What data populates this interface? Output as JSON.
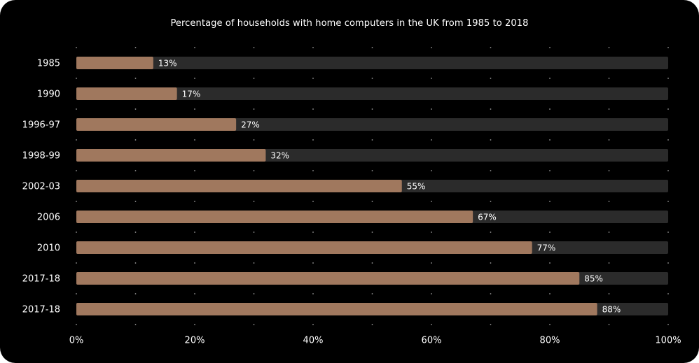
{
  "chart_data": {
    "type": "bar",
    "orientation": "horizontal",
    "title": "Percentage of households with home computers in the UK from 1985 to 2018",
    "categories": [
      "1985",
      "1990",
      "1996-97",
      "1998-99",
      "2002-03",
      "2006",
      "2010",
      "2017-18",
      "2017-18"
    ],
    "values": [
      13,
      17,
      27,
      32,
      55,
      67,
      77,
      85,
      88
    ],
    "value_labels": [
      "13%",
      "17%",
      "27%",
      "32%",
      "55%",
      "67%",
      "77%",
      "85%",
      "88%"
    ],
    "xlim": [
      0,
      100
    ],
    "xticks": [
      0,
      20,
      40,
      60,
      80,
      100
    ],
    "xtick_labels": [
      "0%",
      "20%",
      "40%",
      "60%",
      "80%",
      "100%"
    ],
    "xlabel": "",
    "ylabel": "",
    "grid": "dotted",
    "legend": "none",
    "colors": {
      "background": "#000000",
      "bar": "#a0785e",
      "track": "#2b2b2b",
      "text": "#ffffff",
      "grid_dot": "#9a9a9a"
    }
  }
}
